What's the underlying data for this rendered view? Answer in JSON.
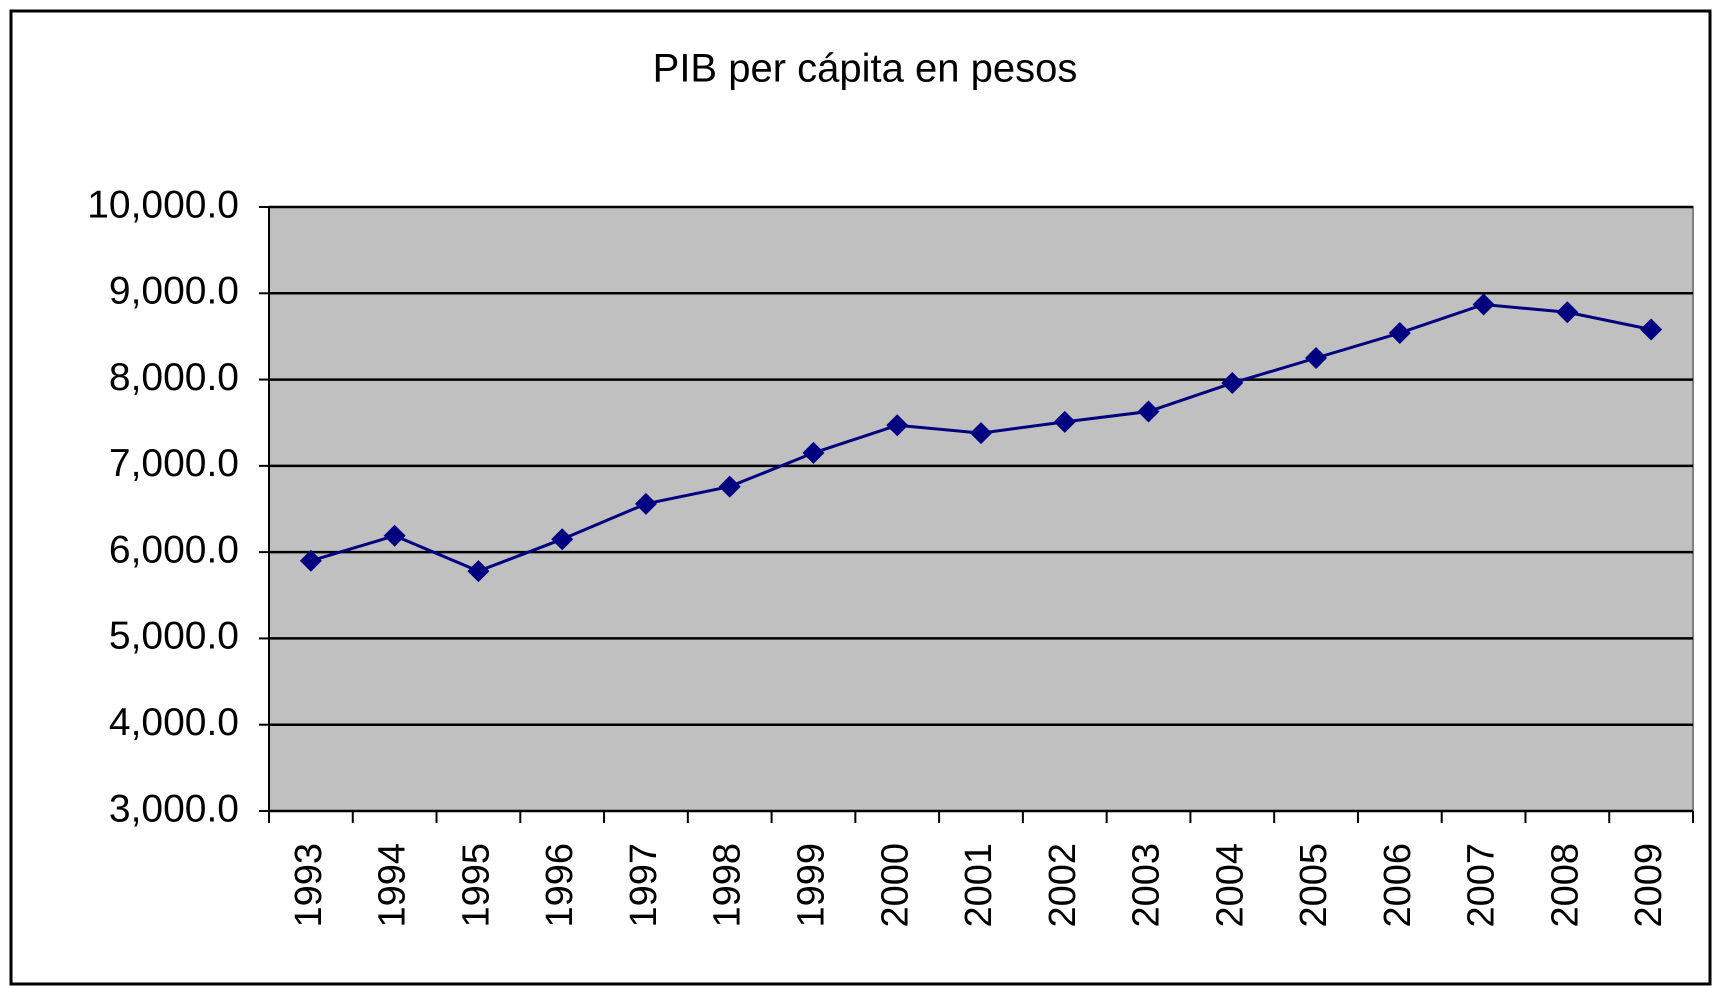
{
  "chart_data": {
    "type": "line",
    "title": "PIB per cápita en pesos",
    "categories": [
      "1993",
      "1994",
      "1995",
      "1996",
      "1997",
      "1998",
      "1999",
      "2000",
      "2001",
      "2002",
      "2003",
      "2004",
      "2005",
      "2006",
      "2007",
      "2008",
      "2009"
    ],
    "series": [
      {
        "name": "PIB per cápita",
        "color": "#000080",
        "values": [
          5900,
          6190,
          5780,
          6150,
          6560,
          6760,
          7150,
          7470,
          7380,
          7510,
          7630,
          7960,
          8250,
          8540,
          8870,
          8780,
          8580
        ]
      }
    ],
    "ylim": [
      3000,
      10000
    ],
    "yticks": [
      {
        "value": 3000,
        "label": "3,000.0"
      },
      {
        "value": 4000,
        "label": "4,000.0"
      },
      {
        "value": 5000,
        "label": "5,000.0"
      },
      {
        "value": 6000,
        "label": "6,000.0"
      },
      {
        "value": 7000,
        "label": "7,000.0"
      },
      {
        "value": 8000,
        "label": "8,000.0"
      },
      {
        "value": 9000,
        "label": "9,000.0"
      },
      {
        "value": 10000,
        "label": "10,000.0"
      }
    ],
    "grid": true,
    "background": "#c0c0c0"
  }
}
